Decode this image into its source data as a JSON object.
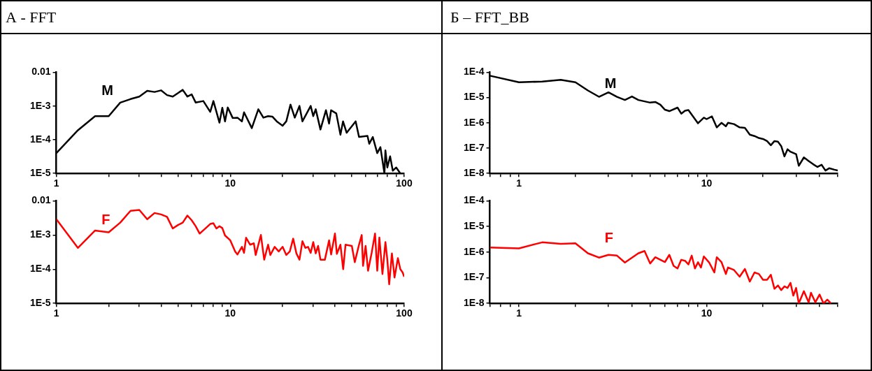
{
  "chart_data": [
    {
      "type": "line",
      "title": "А - FFT",
      "log": "xy",
      "xlim": [
        1,
        100
      ],
      "ylim": [
        1e-05,
        0.01
      ],
      "xticks": [
        1,
        {
          "value": 2,
          "label": null
        },
        {
          "value": 3,
          "label": null
        },
        {
          "value": 4,
          "label": null
        },
        {
          "value": 5,
          "label": null
        },
        {
          "value": 6,
          "label": null
        },
        {
          "value": 7,
          "label": null
        },
        {
          "value": 8,
          "label": null
        },
        {
          "value": 9,
          "label": null
        },
        10,
        {
          "value": 20,
          "label": null
        },
        {
          "value": 30,
          "label": null
        },
        {
          "value": 40,
          "label": null
        },
        {
          "value": 50,
          "label": null
        },
        {
          "value": 60,
          "label": null
        },
        {
          "value": 70,
          "label": null
        },
        {
          "value": 80,
          "label": null
        },
        {
          "value": 90,
          "label": null
        },
        100
      ],
      "yticks": [
        {
          "value": 1e-05,
          "label": "1E-5"
        },
        {
          "value": 0.0001,
          "label": "1E-4"
        },
        {
          "value": 0.001,
          "label": "1E-3"
        },
        0.01
      ],
      "x": [
        1,
        1.33,
        1.67,
        2,
        2.33,
        2.67,
        3,
        3.33,
        3.67,
        4,
        4.33,
        4.67,
        5.33,
        5.67,
        6,
        6.33,
        7,
        7.67,
        8,
        8.67,
        9,
        9.33,
        9.67,
        10.33,
        11,
        11.67,
        12,
        13.3,
        14.5,
        15.5,
        16.5,
        17.5,
        18.5,
        20,
        21,
        22.2,
        23.5,
        25,
        26,
        27.5,
        29,
        30,
        31,
        33,
        35.5,
        37,
        38,
        40.7,
        43,
        44.5,
        46.7,
        52.6,
        55,
        61.5,
        63,
        66,
        70,
        73,
        77,
        78,
        80,
        83,
        86,
        90,
        95
      ],
      "series": [
        {
          "name": "M",
          "color": "#000000",
          "values": [
            4e-05,
            0.00019,
            0.0005,
            0.0005,
            0.00126,
            0.0016,
            0.0019,
            0.0028,
            0.0026,
            0.0029,
            0.0021,
            0.0019,
            0.003,
            0.0019,
            0.0022,
            0.00126,
            0.0014,
            0.00067,
            0.0014,
            0.00032,
            0.00088,
            0.00035,
            0.0009,
            0.00044,
            0.00045,
            0.00035,
            0.00065,
            0.00022,
            0.0008,
            0.00045,
            0.0005,
            0.00048,
            0.00035,
            0.00026,
            0.00035,
            0.0011,
            0.00045,
            0.001,
            0.00035,
            0.0006,
            0.001,
            0.0005,
            0.0008,
            0.0002,
            0.00075,
            0.0003,
            0.00075,
            0.0006,
            0.00014,
            0.00035,
            0.00016,
            0.00035,
            0.00012,
            0.00013,
            7.6e-05,
            0.00012,
            4e-05,
            6e-05,
            1e-05,
            4.8e-05,
            1.5e-05,
            3.2e-05,
            1.2e-05,
            1.5e-05,
            1e-05
          ]
        }
      ]
    },
    {
      "type": "line",
      "log": "xy",
      "xlim": [
        1,
        100
      ],
      "ylim": [
        1e-05,
        0.01
      ],
      "xticks": [
        1,
        {
          "value": 2,
          "label": null
        },
        {
          "value": 3,
          "label": null
        },
        {
          "value": 4,
          "label": null
        },
        {
          "value": 5,
          "label": null
        },
        {
          "value": 6,
          "label": null
        },
        {
          "value": 7,
          "label": null
        },
        {
          "value": 8,
          "label": null
        },
        {
          "value": 9,
          "label": null
        },
        10,
        {
          "value": 20,
          "label": null
        },
        {
          "value": 30,
          "label": null
        },
        {
          "value": 40,
          "label": null
        },
        {
          "value": 50,
          "label": null
        },
        {
          "value": 60,
          "label": null
        },
        {
          "value": 70,
          "label": null
        },
        {
          "value": 80,
          "label": null
        },
        {
          "value": 90,
          "label": null
        },
        100
      ],
      "yticks": [
        {
          "value": 1e-05,
          "label": "1E-5"
        },
        {
          "value": 0.0001,
          "label": "1E-4"
        },
        {
          "value": 0.001,
          "label": "1E-3"
        },
        0.01
      ],
      "x": [
        1,
        1.33,
        1.67,
        2,
        2.33,
        2.67,
        3,
        3.33,
        3.67,
        4,
        4.33,
        4.67,
        5,
        5.33,
        5.67,
        6,
        6.33,
        6.67,
        7.33,
        7.67,
        8,
        8.33,
        8.67,
        9,
        9.33,
        10,
        10.67,
        11,
        11.67,
        12,
        12.33,
        13,
        13.67,
        14,
        15,
        15.67,
        16.5,
        17,
        18,
        19,
        20,
        21,
        22,
        23,
        24,
        25,
        26,
        27,
        28,
        29,
        30,
        31,
        32,
        33,
        35,
        37,
        38,
        40,
        41,
        43,
        44.6,
        46,
        50,
        52,
        55,
        57,
        58,
        60,
        62,
        65,
        68,
        70,
        72,
        75,
        78,
        80,
        82,
        85,
        88,
        92,
        95,
        98,
        100
      ],
      "series": [
        {
          "name": "F",
          "color": "#ff0000",
          "values": [
            0.0029,
            0.00042,
            0.00135,
            0.0012,
            0.0023,
            0.0051,
            0.0054,
            0.0029,
            0.0044,
            0.004,
            0.0034,
            0.00155,
            0.00195,
            0.0023,
            0.0037,
            0.0027,
            0.0018,
            0.0011,
            0.0017,
            0.0021,
            0.0022,
            0.00155,
            0.0018,
            0.0016,
            0.00097,
            0.0007,
            0.00033,
            0.00027,
            0.00045,
            0.0003,
            0.00083,
            0.00052,
            0.00057,
            0.00026,
            0.001,
            0.00019,
            0.00052,
            0.00026,
            0.00045,
            0.00033,
            0.00045,
            0.00026,
            0.00033,
            0.00078,
            0.00029,
            0.00019,
            0.00066,
            0.00042,
            0.00045,
            0.0003,
            0.00062,
            0.00029,
            0.00048,
            0.00019,
            0.00019,
            0.0007,
            0.00027,
            0.0011,
            0.00028,
            0.00052,
            0.0001,
            0.00052,
            0.00048,
            0.00016,
            0.00052,
            0.001,
            0.000125,
            0.00048,
            9e-05,
            0.0003,
            0.0011,
            9e-05,
            0.00084,
            7.2e-05,
            0.00062,
            0.00019,
            3.6e-05,
            0.00029,
            5.7e-05,
            0.00021,
            0.0001,
            8e-05,
            6e-05
          ]
        }
      ]
    },
    {
      "type": "line",
      "title": "Б – FFT_BB",
      "log": "xy",
      "xlim": [
        0.7,
        50
      ],
      "ylim": [
        1e-08,
        0.0001
      ],
      "xticks": [
        {
          "value": 0.7,
          "label": null
        },
        {
          "value": 0.8,
          "label": null
        },
        {
          "value": 0.9,
          "label": null
        },
        1,
        {
          "value": 2,
          "label": null
        },
        {
          "value": 3,
          "label": null
        },
        {
          "value": 4,
          "label": null
        },
        {
          "value": 5,
          "label": null
        },
        {
          "value": 6,
          "label": null
        },
        {
          "value": 7,
          "label": null
        },
        {
          "value": 8,
          "label": null
        },
        {
          "value": 9,
          "label": null
        },
        10,
        {
          "value": 20,
          "label": null
        },
        {
          "value": 30,
          "label": null
        },
        {
          "value": 40,
          "label": null
        },
        {
          "value": 50,
          "label": null
        }
      ],
      "yticks": [
        {
          "value": 1e-08,
          "label": "1E-8"
        },
        {
          "value": 1e-07,
          "label": "1E-7"
        },
        {
          "value": 1e-06,
          "label": "1E-6"
        },
        {
          "value": 1e-05,
          "label": "1E-5"
        },
        {
          "value": 0.0001,
          "label": "1E-4"
        }
      ],
      "x": [
        0.7,
        1,
        1.33,
        1.67,
        2,
        2.33,
        2.67,
        3,
        3.33,
        3.67,
        4,
        4.33,
        5,
        5.33,
        5.67,
        6,
        6.33,
        7,
        7.33,
        7.67,
        8,
        9,
        9.67,
        10,
        10.67,
        11.33,
        12,
        12.67,
        13,
        14,
        15,
        16,
        17,
        18,
        19,
        20,
        21,
        22,
        23,
        24,
        25,
        26,
        27,
        28,
        30,
        31,
        33,
        35,
        37,
        39,
        41,
        43,
        45,
        48,
        50
      ],
      "series": [
        {
          "name": "M",
          "color": "#000000",
          "values": [
            7.3e-05,
            4e-05,
            4.3e-05,
            5e-05,
            4e-05,
            1.9e-05,
            1.07e-05,
            1.6e-05,
            1.07e-05,
            8e-06,
            1.1e-05,
            8e-06,
            6.3e-06,
            6.7e-06,
            5.2e-06,
            3.3e-06,
            2.9e-06,
            4e-06,
            2.3e-06,
            3e-06,
            3.2e-06,
            9.6e-07,
            1.6e-06,
            1.4e-06,
            1.8e-06,
            6.6e-07,
            1e-06,
            7.3e-07,
            1e-06,
            8.9e-07,
            6.6e-07,
            6.3e-07,
            3.4e-07,
            3e-07,
            2.5e-07,
            2.3e-07,
            1.9e-07,
            1.3e-07,
            1.9e-07,
            1.8e-07,
            1.2e-07,
            4.7e-08,
            9e-08,
            7.2e-08,
            5.8e-08,
            2e-08,
            4.3e-08,
            3.1e-08,
            2.3e-08,
            1.8e-08,
            2.2e-08,
            1.3e-08,
            1.6e-08,
            1.4e-08,
            1.3e-08
          ]
        }
      ]
    },
    {
      "type": "line",
      "log": "xy",
      "xlim": [
        0.7,
        50
      ],
      "ylim": [
        1e-08,
        0.0001
      ],
      "xticks": [
        {
          "value": 0.7,
          "label": null
        },
        {
          "value": 0.8,
          "label": null
        },
        {
          "value": 0.9,
          "label": null
        },
        1,
        {
          "value": 2,
          "label": null
        },
        {
          "value": 3,
          "label": null
        },
        {
          "value": 4,
          "label": null
        },
        {
          "value": 5,
          "label": null
        },
        {
          "value": 6,
          "label": null
        },
        {
          "value": 7,
          "label": null
        },
        {
          "value": 8,
          "label": null
        },
        {
          "value": 9,
          "label": null
        },
        10,
        {
          "value": 20,
          "label": null
        },
        {
          "value": 30,
          "label": null
        },
        {
          "value": 40,
          "label": null
        },
        {
          "value": 50,
          "label": null
        }
      ],
      "yticks": [
        {
          "value": 1e-08,
          "label": "1E-8"
        },
        {
          "value": 1e-07,
          "label": "1E-7"
        },
        {
          "value": 1e-06,
          "label": "1E-6"
        },
        {
          "value": 1e-05,
          "label": "1E-5"
        },
        {
          "value": 0.0001,
          "label": "1E-4"
        }
      ],
      "x": [
        0.7,
        1,
        1.33,
        1.67,
        2,
        2.33,
        2.67,
        3,
        3.33,
        3.67,
        4.33,
        4.67,
        5,
        5.33,
        6,
        6.33,
        6.67,
        7,
        7.33,
        7.67,
        8,
        8.33,
        8.67,
        9,
        9.33,
        9.67,
        10.33,
        11,
        11.33,
        12,
        12.67,
        13,
        14,
        15,
        16,
        17,
        18,
        19,
        20,
        21,
        22,
        23,
        24,
        25,
        26,
        27,
        28,
        29,
        30,
        31,
        33,
        35,
        36,
        38,
        40,
        42,
        44,
        46
      ],
      "series": [
        {
          "name": "F",
          "color": "#ff0000",
          "values": [
            1.5e-06,
            1.4e-06,
            2.4e-06,
            2.1e-06,
            2.2e-06,
            9e-07,
            6.1e-07,
            7.8e-07,
            7.3e-07,
            3.9e-07,
            9e-07,
            1.1e-06,
            3.6e-07,
            6.3e-07,
            4.1e-07,
            7.8e-07,
            2.9e-07,
            2.3e-07,
            5e-07,
            4.6e-07,
            3.3e-07,
            7.3e-07,
            2.3e-07,
            4e-07,
            2.5e-07,
            6.8e-07,
            3.9e-07,
            1.6e-07,
            6.3e-07,
            4.1e-07,
            1.4e-07,
            2.5e-07,
            2e-07,
            1.1e-07,
            2.2e-07,
            7.1e-08,
            1.6e-07,
            1.4e-07,
            8.3e-08,
            8.3e-08,
            1.3e-07,
            3.7e-08,
            5e-08,
            3.3e-08,
            4.6e-08,
            4e-08,
            6.3e-08,
            2e-08,
            4e-08,
            1e-08,
            3e-08,
            1.1e-08,
            2.6e-08,
            1.1e-08,
            2.2e-08,
            1e-08,
            1.4e-08,
            1e-08
          ]
        }
      ]
    }
  ]
}
